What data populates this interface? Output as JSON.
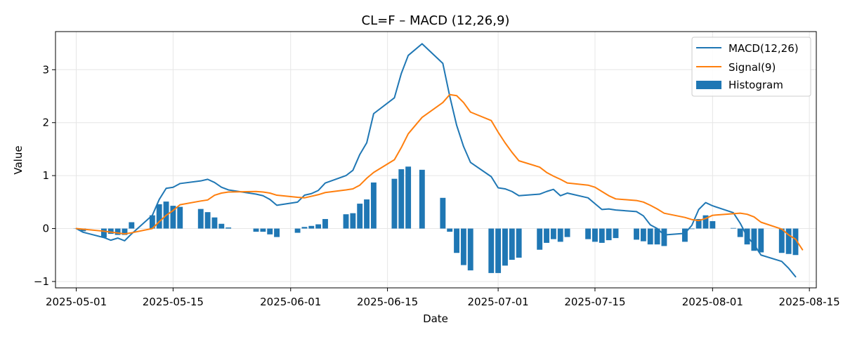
{
  "chart_data": {
    "type": "line",
    "title": "CL=F – MACD (12,26,9)",
    "xlabel": "Date",
    "ylabel": "Value",
    "grid": true,
    "legend_position": "top-right",
    "x_range": [
      "2025-04-28",
      "2025-08-16"
    ],
    "ylim": [
      -1.12,
      3.72
    ],
    "x_ticks": [
      "2025-05-01",
      "2025-05-15",
      "2025-06-01",
      "2025-06-15",
      "2025-07-01",
      "2025-07-15",
      "2025-08-01",
      "2025-08-15"
    ],
    "y_ticks": [
      -1,
      0,
      1,
      2,
      3
    ],
    "y_tick_labels": [
      "−1",
      "0",
      "1",
      "2",
      "3"
    ],
    "colors": {
      "macd": "#1f77b4",
      "signal": "#ff7f0e",
      "histogram": "#1f77b4",
      "grid": "#e6e6e6"
    },
    "series": [
      {
        "name": "MACD(12,26)",
        "type": "line",
        "points": [
          [
            "2025-05-01",
            0.0
          ],
          [
            "2025-05-02",
            -0.07
          ],
          [
            "2025-05-05",
            -0.17
          ],
          [
            "2025-05-06",
            -0.22
          ],
          [
            "2025-05-07",
            -0.18
          ],
          [
            "2025-05-08",
            -0.23
          ],
          [
            "2025-05-09",
            -0.1
          ],
          [
            "2025-05-12",
            0.25
          ],
          [
            "2025-05-13",
            0.55
          ],
          [
            "2025-05-14",
            0.76
          ],
          [
            "2025-05-15",
            0.78
          ],
          [
            "2025-05-16",
            0.85
          ],
          [
            "2025-05-19",
            0.9
          ],
          [
            "2025-05-20",
            0.93
          ],
          [
            "2025-05-21",
            0.87
          ],
          [
            "2025-05-22",
            0.78
          ],
          [
            "2025-05-23",
            0.73
          ],
          [
            "2025-05-27",
            0.65
          ],
          [
            "2025-05-28",
            0.62
          ],
          [
            "2025-05-29",
            0.55
          ],
          [
            "2025-05-30",
            0.44
          ],
          [
            "2025-06-02",
            0.5
          ],
          [
            "2025-06-03",
            0.63
          ],
          [
            "2025-06-04",
            0.66
          ],
          [
            "2025-06-05",
            0.72
          ],
          [
            "2025-06-06",
            0.86
          ],
          [
            "2025-06-09",
            1.0
          ],
          [
            "2025-06-10",
            1.1
          ],
          [
            "2025-06-11",
            1.4
          ],
          [
            "2025-06-12",
            1.62
          ],
          [
            "2025-06-13",
            2.17
          ],
          [
            "2025-06-16",
            2.47
          ],
          [
            "2025-06-17",
            2.93
          ],
          [
            "2025-06-18",
            3.27
          ],
          [
            "2025-06-20",
            3.49
          ],
          [
            "2025-06-23",
            3.12
          ],
          [
            "2025-06-24",
            2.5
          ],
          [
            "2025-06-25",
            1.95
          ],
          [
            "2025-06-26",
            1.55
          ],
          [
            "2025-06-27",
            1.25
          ],
          [
            "2025-06-30",
            0.98
          ],
          [
            "2025-07-01",
            0.77
          ],
          [
            "2025-07-02",
            0.75
          ],
          [
            "2025-07-03",
            0.7
          ],
          [
            "2025-07-04",
            0.62
          ],
          [
            "2025-07-07",
            0.65
          ],
          [
            "2025-07-08",
            0.7
          ],
          [
            "2025-07-09",
            0.74
          ],
          [
            "2025-07-10",
            0.62
          ],
          [
            "2025-07-11",
            0.67
          ],
          [
            "2025-07-14",
            0.58
          ],
          [
            "2025-07-15",
            0.47
          ],
          [
            "2025-07-16",
            0.36
          ],
          [
            "2025-07-17",
            0.37
          ],
          [
            "2025-07-18",
            0.35
          ],
          [
            "2025-07-21",
            0.32
          ],
          [
            "2025-07-22",
            0.24
          ],
          [
            "2025-07-23",
            0.07
          ],
          [
            "2025-07-24",
            0.0
          ],
          [
            "2025-07-25",
            -0.12
          ],
          [
            "2025-07-28",
            -0.09
          ],
          [
            "2025-07-29",
            0.06
          ],
          [
            "2025-07-30",
            0.36
          ],
          [
            "2025-07-31",
            0.49
          ],
          [
            "2025-08-01",
            0.43
          ],
          [
            "2025-08-04",
            0.3
          ],
          [
            "2025-08-05",
            0.1
          ],
          [
            "2025-08-06",
            -0.15
          ],
          [
            "2025-08-07",
            -0.3
          ],
          [
            "2025-08-08",
            -0.5
          ],
          [
            "2025-08-11",
            -0.62
          ],
          [
            "2025-08-12",
            -0.75
          ],
          [
            "2025-08-13",
            -0.91
          ]
        ]
      },
      {
        "name": "Signal(9)",
        "type": "line",
        "points": [
          [
            "2025-05-01",
            0.0
          ],
          [
            "2025-05-05",
            -0.05
          ],
          [
            "2025-05-08",
            -0.1
          ],
          [
            "2025-05-09",
            -0.08
          ],
          [
            "2025-05-12",
            0.0
          ],
          [
            "2025-05-13",
            0.13
          ],
          [
            "2025-05-14",
            0.25
          ],
          [
            "2025-05-15",
            0.34
          ],
          [
            "2025-05-16",
            0.45
          ],
          [
            "2025-05-19",
            0.52
          ],
          [
            "2025-05-20",
            0.54
          ],
          [
            "2025-05-21",
            0.63
          ],
          [
            "2025-05-22",
            0.67
          ],
          [
            "2025-05-23",
            0.69
          ],
          [
            "2025-05-27",
            0.7
          ],
          [
            "2025-05-28",
            0.69
          ],
          [
            "2025-05-29",
            0.67
          ],
          [
            "2025-05-30",
            0.63
          ],
          [
            "2025-06-02",
            0.59
          ],
          [
            "2025-06-03",
            0.58
          ],
          [
            "2025-06-04",
            0.61
          ],
          [
            "2025-06-05",
            0.64
          ],
          [
            "2025-06-06",
            0.68
          ],
          [
            "2025-06-09",
            0.73
          ],
          [
            "2025-06-10",
            0.75
          ],
          [
            "2025-06-11",
            0.82
          ],
          [
            "2025-06-12",
            0.95
          ],
          [
            "2025-06-13",
            1.06
          ],
          [
            "2025-06-16",
            1.3
          ],
          [
            "2025-06-17",
            1.53
          ],
          [
            "2025-06-18",
            1.79
          ],
          [
            "2025-06-20",
            2.1
          ],
          [
            "2025-06-23",
            2.38
          ],
          [
            "2025-06-24",
            2.53
          ],
          [
            "2025-06-25",
            2.51
          ],
          [
            "2025-06-26",
            2.38
          ],
          [
            "2025-06-27",
            2.2
          ],
          [
            "2025-06-30",
            2.04
          ],
          [
            "2025-07-01",
            1.82
          ],
          [
            "2025-07-02",
            1.62
          ],
          [
            "2025-07-03",
            1.44
          ],
          [
            "2025-07-04",
            1.28
          ],
          [
            "2025-07-07",
            1.16
          ],
          [
            "2025-07-08",
            1.06
          ],
          [
            "2025-07-09",
            0.99
          ],
          [
            "2025-07-10",
            0.93
          ],
          [
            "2025-07-11",
            0.86
          ],
          [
            "2025-07-14",
            0.82
          ],
          [
            "2025-07-15",
            0.78
          ],
          [
            "2025-07-16",
            0.7
          ],
          [
            "2025-07-17",
            0.62
          ],
          [
            "2025-07-18",
            0.56
          ],
          [
            "2025-07-21",
            0.53
          ],
          [
            "2025-07-22",
            0.5
          ],
          [
            "2025-07-23",
            0.44
          ],
          [
            "2025-07-24",
            0.37
          ],
          [
            "2025-07-25",
            0.29
          ],
          [
            "2025-07-28",
            0.21
          ],
          [
            "2025-07-29",
            0.17
          ],
          [
            "2025-07-30",
            0.15
          ],
          [
            "2025-07-31",
            0.19
          ],
          [
            "2025-08-01",
            0.25
          ],
          [
            "2025-08-04",
            0.28
          ],
          [
            "2025-08-05",
            0.29
          ],
          [
            "2025-08-06",
            0.27
          ],
          [
            "2025-08-07",
            0.22
          ],
          [
            "2025-08-08",
            0.12
          ],
          [
            "2025-08-11",
            -0.01
          ],
          [
            "2025-08-12",
            -0.12
          ],
          [
            "2025-08-13",
            -0.2
          ],
          [
            "2025-08-14",
            -0.4
          ]
        ]
      },
      {
        "name": "Histogram",
        "type": "bar",
        "points": [
          [
            "2025-05-01",
            0.0
          ],
          [
            "2025-05-02",
            -0.05
          ],
          [
            "2025-05-05",
            -0.17
          ],
          [
            "2025-05-06",
            -0.1
          ],
          [
            "2025-05-07",
            -0.12
          ],
          [
            "2025-05-08",
            -0.12
          ],
          [
            "2025-05-09",
            0.12
          ],
          [
            "2025-05-12",
            0.25
          ],
          [
            "2025-05-13",
            0.46
          ],
          [
            "2025-05-14",
            0.51
          ],
          [
            "2025-05-15",
            0.43
          ],
          [
            "2025-05-16",
            0.41
          ],
          [
            "2025-05-19",
            0.37
          ],
          [
            "2025-05-20",
            0.31
          ],
          [
            "2025-05-21",
            0.21
          ],
          [
            "2025-05-22",
            0.09
          ],
          [
            "2025-05-23",
            0.02
          ],
          [
            "2025-05-27",
            -0.06
          ],
          [
            "2025-05-28",
            -0.06
          ],
          [
            "2025-05-29",
            -0.11
          ],
          [
            "2025-05-30",
            -0.16
          ],
          [
            "2025-06-02",
            -0.08
          ],
          [
            "2025-06-03",
            0.03
          ],
          [
            "2025-06-04",
            0.05
          ],
          [
            "2025-06-05",
            0.08
          ],
          [
            "2025-06-06",
            0.18
          ],
          [
            "2025-06-09",
            0.27
          ],
          [
            "2025-06-10",
            0.29
          ],
          [
            "2025-06-11",
            0.47
          ],
          [
            "2025-06-12",
            0.55
          ],
          [
            "2025-06-13",
            0.87
          ],
          [
            "2025-06-16",
            0.94
          ],
          [
            "2025-06-17",
            1.12
          ],
          [
            "2025-06-18",
            1.17
          ],
          [
            "2025-06-20",
            1.11
          ],
          [
            "2025-06-23",
            0.58
          ],
          [
            "2025-06-24",
            -0.06
          ],
          [
            "2025-06-25",
            -0.46
          ],
          [
            "2025-06-26",
            -0.69
          ],
          [
            "2025-06-27",
            -0.79
          ],
          [
            "2025-06-30",
            -0.84
          ],
          [
            "2025-07-01",
            -0.84
          ],
          [
            "2025-07-02",
            -0.7
          ],
          [
            "2025-07-03",
            -0.59
          ],
          [
            "2025-07-04",
            -0.55
          ],
          [
            "2025-07-07",
            -0.4
          ],
          [
            "2025-07-08",
            -0.27
          ],
          [
            "2025-07-09",
            -0.2
          ],
          [
            "2025-07-10",
            -0.25
          ],
          [
            "2025-07-11",
            -0.16
          ],
          [
            "2025-07-14",
            -0.2
          ],
          [
            "2025-07-15",
            -0.25
          ],
          [
            "2025-07-16",
            -0.27
          ],
          [
            "2025-07-17",
            -0.22
          ],
          [
            "2025-07-18",
            -0.18
          ],
          [
            "2025-07-21",
            -0.21
          ],
          [
            "2025-07-22",
            -0.24
          ],
          [
            "2025-07-23",
            -0.3
          ],
          [
            "2025-07-24",
            -0.3
          ],
          [
            "2025-07-25",
            -0.33
          ],
          [
            "2025-07-28",
            -0.25
          ],
          [
            "2025-07-29",
            -0.01
          ],
          [
            "2025-07-30",
            0.18
          ],
          [
            "2025-07-31",
            0.25
          ],
          [
            "2025-08-01",
            0.14
          ],
          [
            "2025-08-04",
            0.01
          ],
          [
            "2025-08-05",
            -0.16
          ],
          [
            "2025-08-06",
            -0.3
          ],
          [
            "2025-08-07",
            -0.42
          ],
          [
            "2025-08-08",
            -0.45
          ],
          [
            "2025-08-11",
            -0.46
          ],
          [
            "2025-08-12",
            -0.48
          ],
          [
            "2025-08-13",
            -0.5
          ]
        ]
      }
    ]
  }
}
